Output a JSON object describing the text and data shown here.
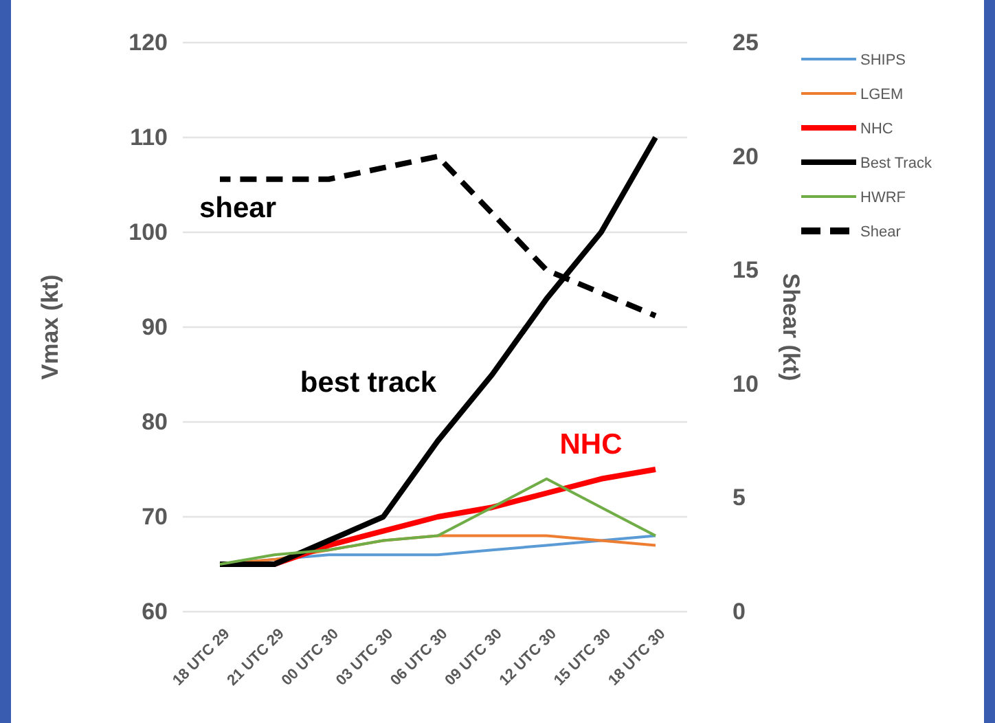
{
  "chart_data": {
    "type": "line",
    "categories": [
      "18 UTC 29",
      "21 UTC 29",
      "00 UTC 30",
      "03 UTC 30",
      "06 UTC 30",
      "09 UTC 30",
      "12 UTC 30",
      "15 UTC 30",
      "18 UTC 30"
    ],
    "series": [
      {
        "name": "SHIPS",
        "color": "#5b9bd5",
        "values": [
          65,
          65.5,
          66,
          66,
          66,
          66.5,
          67,
          67.5,
          68
        ]
      },
      {
        "name": "LGEM",
        "color": "#ed7d31",
        "values": [
          65,
          65.5,
          66.5,
          67.5,
          68,
          68,
          68,
          67.5,
          67
        ]
      },
      {
        "name": "NHC",
        "color": "#ff0000",
        "values": [
          65,
          65,
          67,
          68.5,
          70,
          71,
          72.5,
          74,
          75
        ]
      },
      {
        "name": "Best Track",
        "color": "#000000",
        "values": [
          65,
          65,
          67.5,
          70,
          78,
          85,
          93,
          100,
          110
        ]
      },
      {
        "name": "HWRF",
        "color": "#70ad47",
        "values": [
          65,
          66,
          66.5,
          67.5,
          68,
          71,
          74,
          71,
          68
        ]
      },
      {
        "name": "Shear",
        "color": "#000000",
        "axis": "y2",
        "line_style": "dashed",
        "values": [
          19,
          19,
          19,
          19.5,
          20,
          17.5,
          15,
          14,
          13
        ]
      }
    ],
    "ylabel": "Vmax (kt)",
    "y2label": "Shear (kt)",
    "ylim": [
      60,
      120
    ],
    "yticks": [
      60,
      70,
      80,
      90,
      100,
      110,
      120
    ],
    "y2lim": [
      0,
      25
    ],
    "y2ticks": [
      0,
      5,
      10,
      15,
      20,
      25
    ],
    "annotations": [
      "shear",
      "best track",
      "NHC"
    ],
    "grid": "y",
    "legend": "right",
    "line_style": "solid",
    "marker": "none"
  }
}
